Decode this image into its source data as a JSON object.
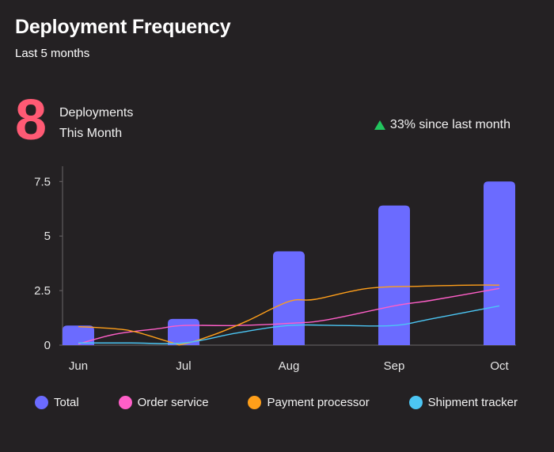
{
  "header": {
    "title": "Deployment Frequency",
    "subtitle": "Last 5 months"
  },
  "kpi": {
    "value": "8",
    "label_line1": "Deployments",
    "label_line2": "This Month",
    "change_text": "33% since last month",
    "change_icon": "triangle-up-icon",
    "change_color": "#22c55e",
    "value_color": "#ff5a74"
  },
  "chart_data": {
    "type": "bar",
    "categories": [
      "Jun",
      "Jul",
      "Aug",
      "Sep",
      "Oct"
    ],
    "ylim": [
      0,
      8.2
    ],
    "yticks": [
      0,
      2.5,
      5,
      7.5
    ],
    "ytick_labels": [
      "0",
      "2.5",
      "5",
      "7.5"
    ],
    "grid": false,
    "legend_position": "bottom",
    "series": [
      {
        "name": "Total",
        "type": "bar",
        "color": "#6b6bff",
        "values": [
          0.9,
          1.2,
          4.3,
          6.4,
          7.5
        ]
      },
      {
        "name": "Order service",
        "type": "line",
        "color": "#ff5fc8",
        "x": [
          0,
          0.35,
          0.75,
          1.0,
          1.5,
          2.0,
          2.35,
          3.0,
          3.35,
          4.0
        ],
        "values": [
          0.05,
          0.5,
          0.75,
          0.9,
          0.9,
          1.0,
          1.15,
          1.8,
          2.05,
          2.6
        ]
      },
      {
        "name": "Payment processor",
        "type": "line",
        "color": "#ff9f1a",
        "x": [
          0,
          0.35,
          0.55,
          0.9,
          1.0,
          1.3,
          1.6,
          2.0,
          2.25,
          2.75,
          3.25,
          3.75,
          4.0
        ],
        "values": [
          0.85,
          0.75,
          0.6,
          0.1,
          0.05,
          0.5,
          1.1,
          2.0,
          2.1,
          2.6,
          2.7,
          2.75,
          2.75
        ]
      },
      {
        "name": "Shipment tracker",
        "type": "line",
        "color": "#4cc6f4",
        "x": [
          0,
          0.5,
          1.0,
          1.5,
          2.0,
          2.5,
          3.0,
          3.35,
          4.0
        ],
        "values": [
          0.1,
          0.1,
          0.1,
          0.55,
          0.9,
          0.9,
          0.9,
          1.2,
          1.8
        ]
      }
    ]
  }
}
